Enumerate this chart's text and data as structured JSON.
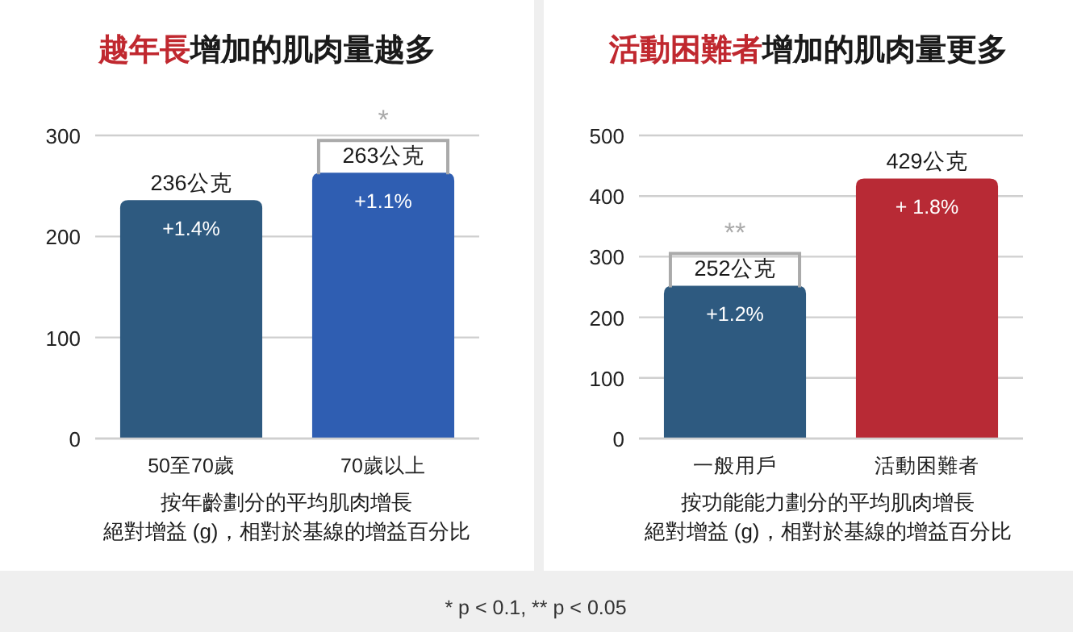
{
  "chart_data": [
    {
      "type": "bar",
      "title": "**越年長**增加的肌肉量越多",
      "categories": [
        "50至70歲",
        "70歲以上"
      ],
      "values": [
        236,
        263
      ],
      "colors": [
        "#2e5a80",
        "#2f5eb2"
      ],
      "value_labels": [
        "236公克",
        "263公克"
      ],
      "xlabel": [
        "按年齡劃分的平均肌肉增長",
        "絕對增益 (g)，相對於基線的增益百分比"
      ],
      "ylim": [
        0,
        300
      ],
      "yticks": [
        0,
        100,
        200,
        300
      ],
      "grid": "y",
      "annotations": [
        {
          "text": "+1.4%",
          "x": "50至70歲",
          "y": 236
        },
        {
          "text": "+1.1%",
          "x": "70歲以上",
          "y": 263
        },
        {
          "text": "*",
          "x": "70歲以上",
          "y": 263
        }
      ]
    },
    {
      "type": "bar",
      "title": "**活動困難者**增加的肌肉量更多",
      "categories": [
        "一般用戶",
        "活動困難者"
      ],
      "values": [
        252,
        429
      ],
      "colors": [
        "#2e5a80",
        "#b82a35"
      ],
      "value_labels": [
        "252公克",
        "429公克"
      ],
      "xlabel": [
        "按功能能力劃分的平均肌肉增長",
        "絕對增益 (g)，相對於基線的增益百分比"
      ],
      "ylim": [
        0,
        500
      ],
      "yticks": [
        0,
        100,
        200,
        300,
        400,
        500
      ],
      "grid": "y",
      "annotations": [
        {
          "text": "+1.2%",
          "x": "一般用戶",
          "y": 252
        },
        {
          "text": "**",
          "x": "一般用戶",
          "y": 252
        },
        {
          "text": "+ 1.8%",
          "x": "活動困難者",
          "y": 429
        },
        "* p < 0.1, ** p < 0.05"
      ]
    }
  ]
}
